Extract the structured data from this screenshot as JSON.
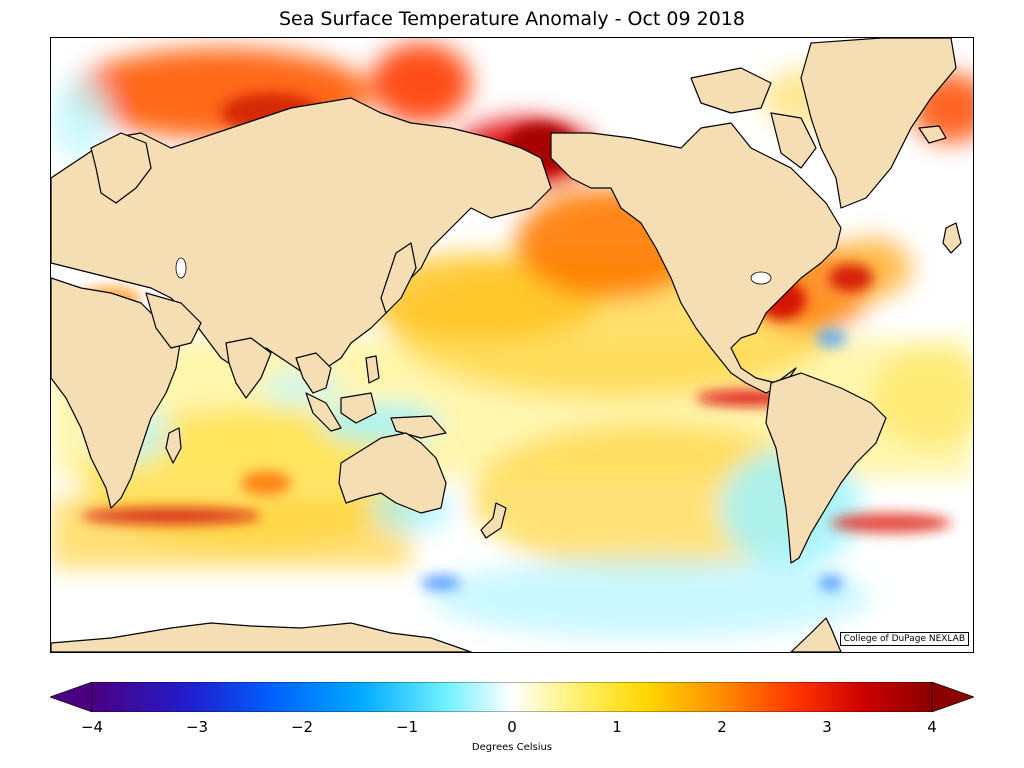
{
  "title": "Sea Surface Temperature Anomaly - Oct 09 2018",
  "credit": "College of DuPage NEXLAB",
  "colorbar": {
    "label": "Degrees Celsius",
    "min": -4,
    "max": 4,
    "ticks": [
      "−4",
      "−3",
      "−2",
      "−1",
      "0",
      "1",
      "2",
      "3",
      "4"
    ],
    "colors": [
      "#4b0082",
      "#1f1fd0",
      "#0064ff",
      "#00aaff",
      "#6ef0ff",
      "#ffffff",
      "#fff06b",
      "#ffd700",
      "#ff8c00",
      "#ff3300",
      "#cc0000",
      "#8b0000"
    ]
  },
  "colors": {
    "land": "#f5deb3",
    "ocean_neutral": "#ffffff"
  }
}
